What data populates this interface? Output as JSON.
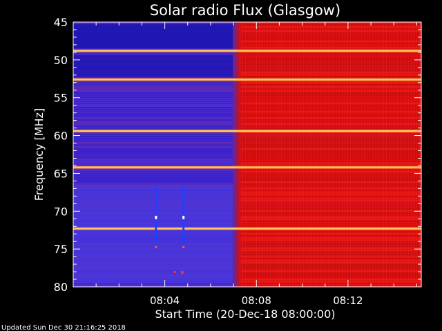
{
  "chart_data": {
    "type": "heatmap",
    "title": "Solar radio Flux (Glasgow)",
    "xlabel": "Start Time (20-Dec-18 08:00:00)",
    "ylabel": "Frequency [MHz]",
    "y_ticks": [
      "45",
      "50",
      "55",
      "60",
      "65",
      "70",
      "75",
      "80"
    ],
    "x_ticks": [
      "08:04",
      "08:08",
      "08:12"
    ],
    "x_tick_minutes": [
      4,
      8,
      12
    ],
    "xlim_minutes": [
      0,
      15.2
    ],
    "ylim_mhz": [
      45,
      80
    ],
    "event_start_minute": 7.15,
    "bright_bands_mhz": [
      48.8,
      52.6,
      59.4,
      64.2,
      72.3
    ],
    "footer": "Updated Sun Dec 30 21:16:25 2018",
    "colors": {
      "before": "#4a2ad0",
      "after": "#e01010",
      "band": "#ffd060",
      "background": "#000000"
    }
  }
}
